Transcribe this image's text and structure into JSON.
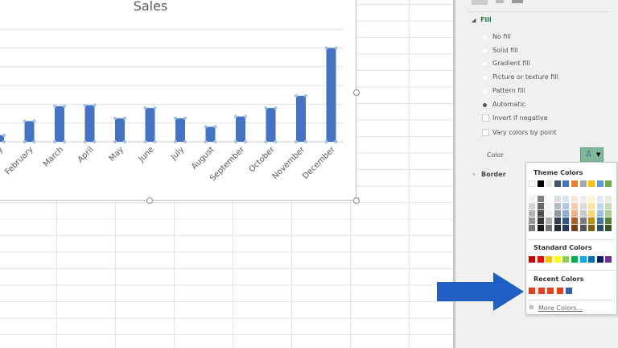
{
  "chart_data": {
    "type": "bar",
    "title": "Sales",
    "categories": [
      "January",
      "February",
      "March",
      "April",
      "May",
      "June",
      "July",
      "August",
      "September",
      "October",
      "November",
      "December"
    ],
    "values": [
      0.35,
      1.1,
      1.9,
      1.95,
      1.25,
      1.8,
      1.25,
      0.8,
      1.35,
      1.8,
      2.45,
      5.0
    ],
    "ylim": [
      0,
      6
    ],
    "grid": true,
    "bar_color": "#4472c4"
  },
  "pane": {
    "fill_header": "Fill",
    "options": [
      "No fill",
      "Solid fill",
      "Gradient fill",
      "Picture or texture fill",
      "Pattern fill",
      "Automatic"
    ],
    "selected": "Automatic",
    "checkboxes": [
      "Invert if negative",
      "Vary colors by point"
    ],
    "color_label": "Color",
    "border_header": "Border"
  },
  "popup": {
    "theme_title": "Theme Colors",
    "standard_title": "Standard Colors",
    "recent_title": "Recent Colors",
    "more": "More Colors...",
    "theme": [
      "#ffffff",
      "#000000",
      "#e7e6e6",
      "#44546a",
      "#4472c4",
      "#ed7d31",
      "#a5a5a5",
      "#ffc000",
      "#5b9bd5",
      "#70ad47"
    ],
    "standard": [
      "#c00000",
      "#ff0000",
      "#ffc000",
      "#ffff00",
      "#92d050",
      "#00b050",
      "#00b0f0",
      "#0070c0",
      "#002060",
      "#7030a0"
    ],
    "recent": [
      "#e8401c",
      "#e8401c",
      "#e8401c",
      "#e8401c",
      "#2f5faf"
    ]
  },
  "arrow_color": "#1f5fc4"
}
